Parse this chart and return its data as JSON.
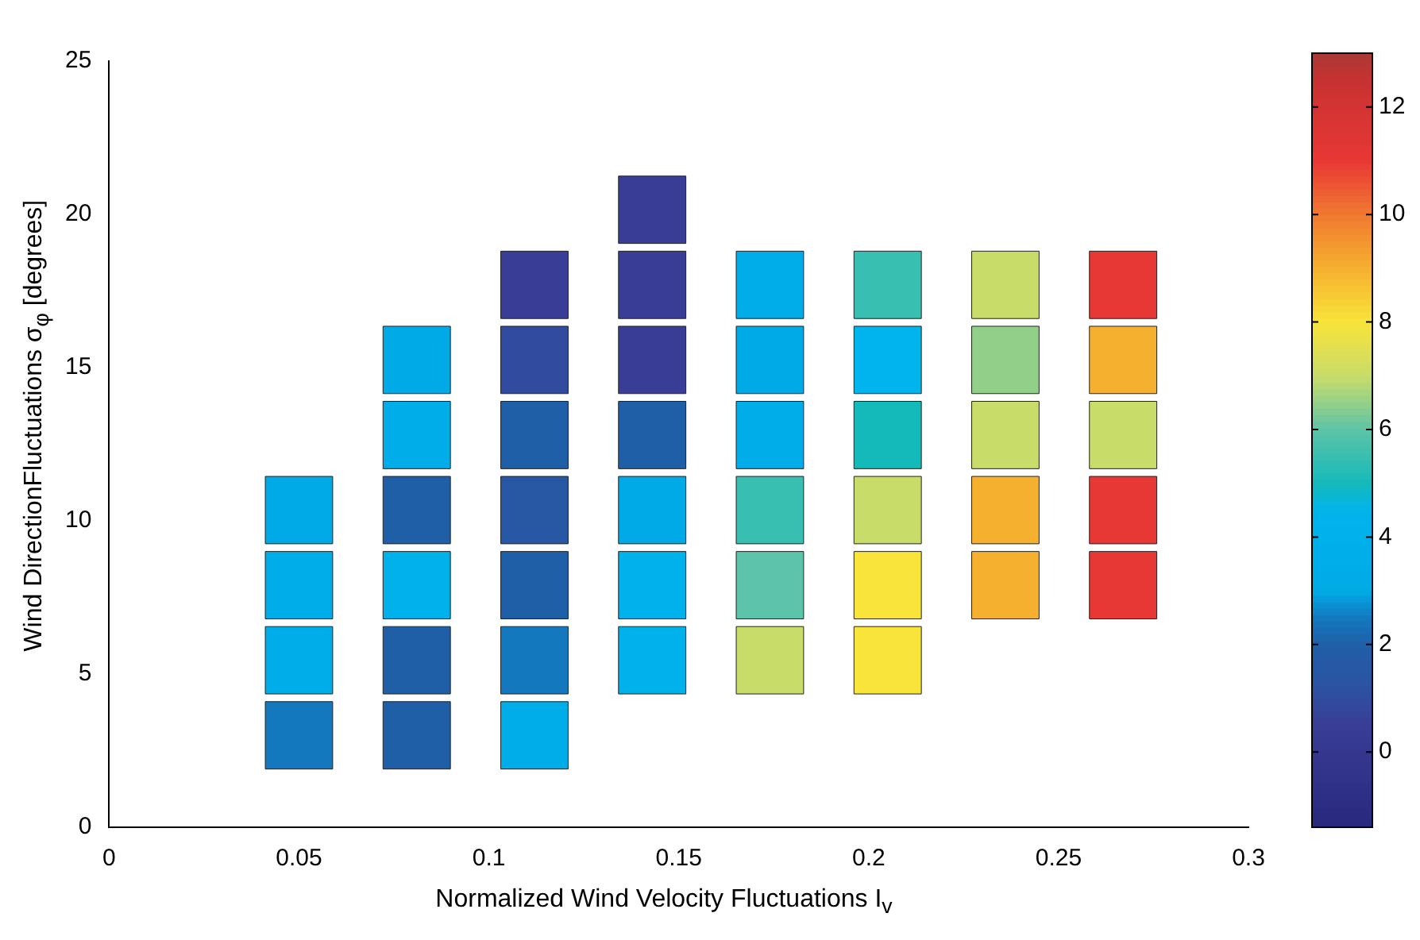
{
  "chart_data": {
    "type": "scatter",
    "marker": "square",
    "xlabel": "Normalized Wind Velocity Fluctuations  I$_{v}$",
    "ylabel": "Wind DirectionFluctuations  σ$_{φ}$   [degrees]",
    "xlim": [
      0,
      0.3
    ],
    "xticks": [
      0,
      0.05,
      0.1,
      0.15,
      0.2,
      0.25,
      0.3
    ],
    "ylim": [
      0,
      25
    ],
    "yticks": [
      0,
      5,
      10,
      15,
      20,
      25
    ],
    "grid": false,
    "legend": false,
    "clim": [
      -1.4,
      13
    ],
    "cticks": [
      0,
      2,
      4,
      6,
      8,
      10,
      12
    ],
    "x": [
      0.05,
      0.081,
      0.112,
      0.05,
      0.081,
      0.112,
      0.143,
      0.174,
      0.205,
      0.05,
      0.081,
      0.112,
      0.143,
      0.174,
      0.205,
      0.236,
      0.267,
      0.05,
      0.081,
      0.112,
      0.143,
      0.174,
      0.205,
      0.236,
      0.267,
      0.081,
      0.112,
      0.143,
      0.174,
      0.205,
      0.236,
      0.267,
      0.081,
      0.112,
      0.143,
      0.174,
      0.205,
      0.236,
      0.267,
      0.112,
      0.143,
      0.174,
      0.205,
      0.236,
      0.267,
      0.143
    ],
    "values": [
      3,
      3,
      3,
      5.45,
      5.45,
      5.45,
      5.45,
      5.45,
      5.45,
      7.9,
      7.9,
      7.9,
      7.9,
      7.9,
      7.9,
      7.9,
      7.9,
      10.35,
      10.35,
      10.35,
      10.35,
      10.35,
      10.35,
      10.35,
      10.35,
      12.8,
      12.8,
      12.8,
      12.8,
      12.8,
      12.8,
      12.8,
      15.25,
      15.25,
      15.25,
      15.25,
      15.25,
      15.25,
      15.25,
      17.7,
      17.7,
      17.7,
      17.7,
      17.7,
      17.7,
      20.15
    ],
    "cvalues": [
      2.5,
      2,
      3.5,
      3.5,
      2,
      2.5,
      4,
      7,
      8,
      3.5,
      4,
      2,
      4,
      6,
      8,
      9,
      11,
      3,
      2,
      1.5,
      3,
      5.5,
      7,
      9,
      11,
      3.5,
      2,
      2,
      3.5,
      5,
      7,
      7,
      3,
      1,
      0.5,
      3,
      4.5,
      6.5,
      9,
      0.5,
      0.5,
      3.5,
      5.5,
      7,
      11,
      0.5
    ]
  }
}
